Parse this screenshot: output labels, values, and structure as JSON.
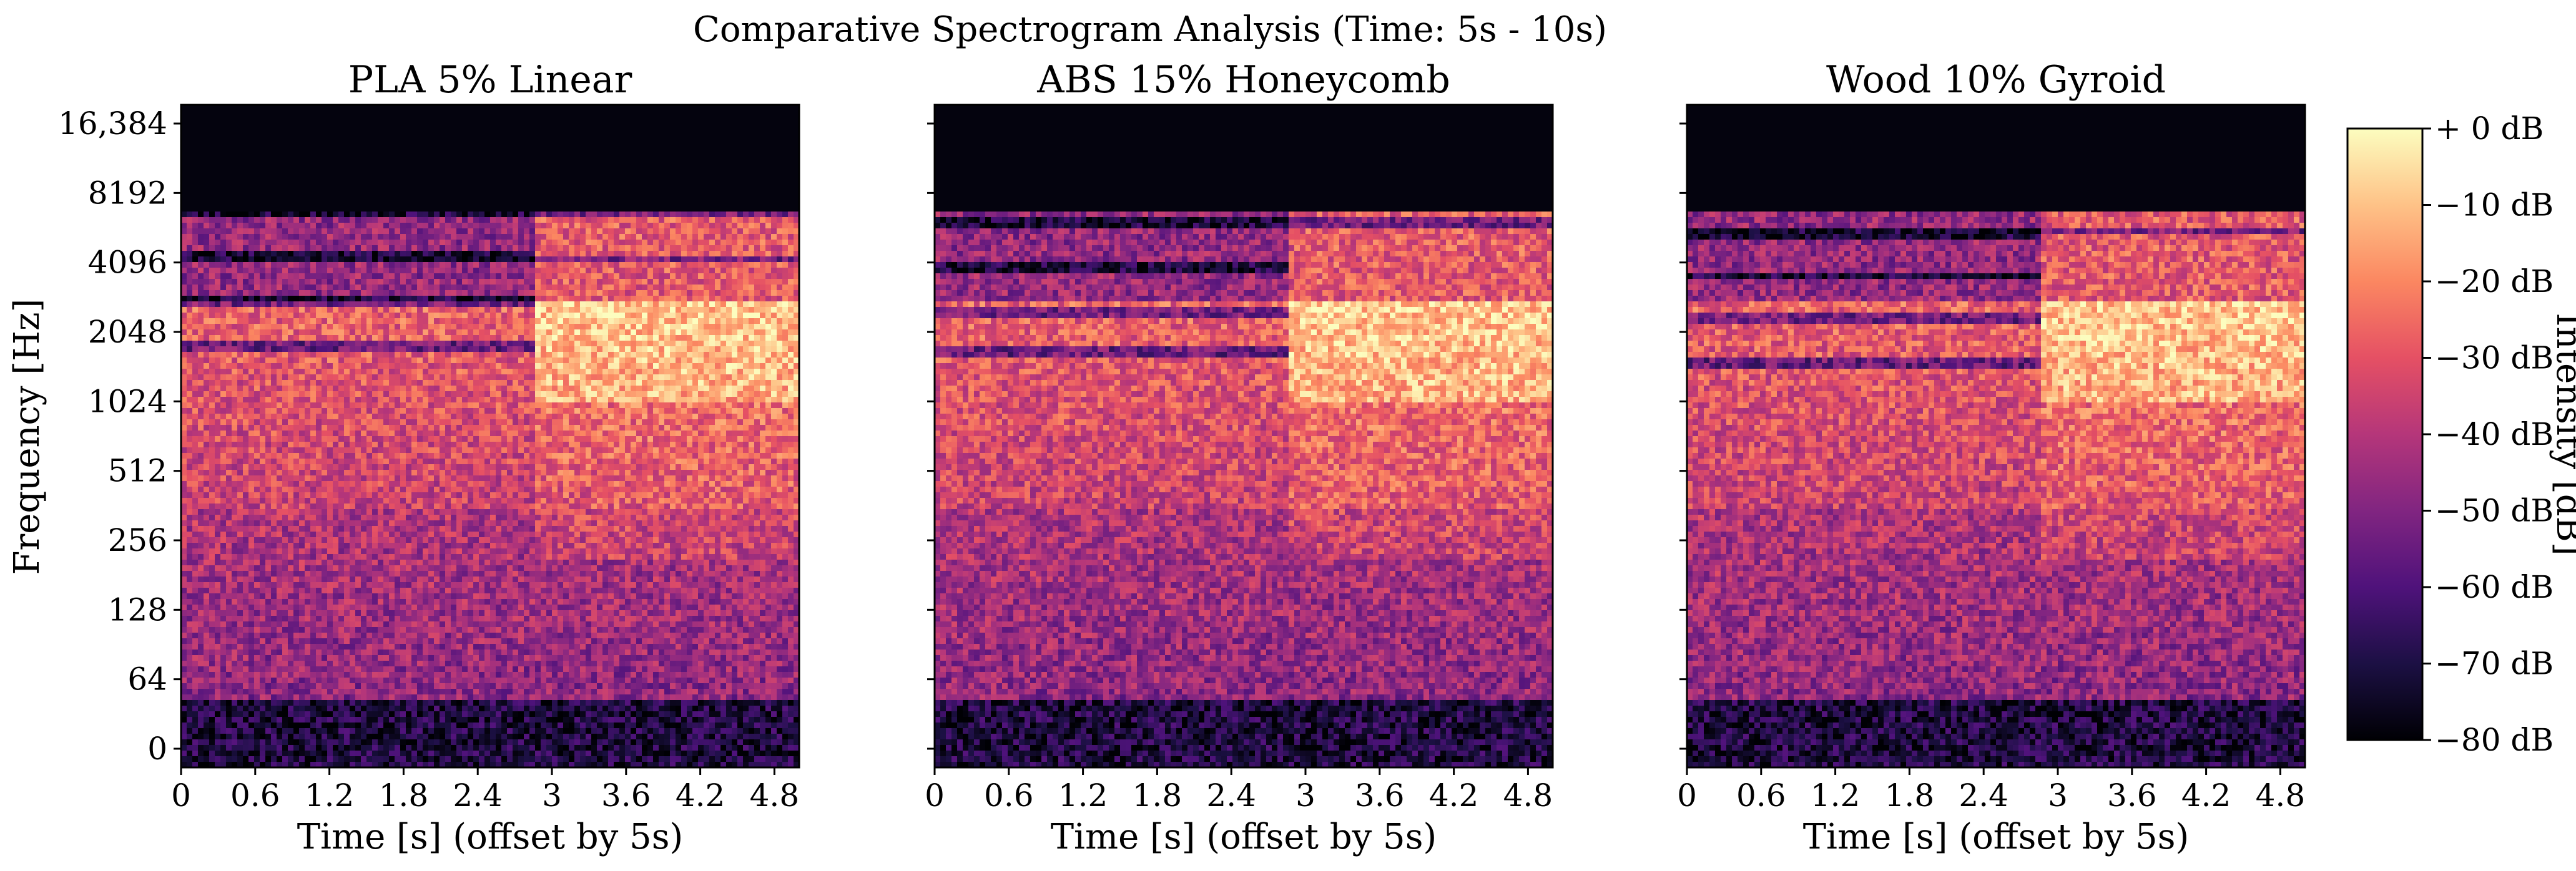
{
  "chart_data": {
    "type": "heatmap",
    "suptitle": "Comparative Spectrogram Analysis (Time: 5s - 10s)",
    "xlabel": "Time [s] (offset by 5s)",
    "ylabel": "Frequency [Hz]",
    "xlim": [
      0,
      5
    ],
    "x_ticks": [
      "0",
      "0.6",
      "1.2",
      "1.8",
      "2.4",
      "3",
      "3.6",
      "4.2",
      "4.8"
    ],
    "y_scale": "symlog",
    "y_ticks": [
      "0",
      "64",
      "128",
      "256",
      "512",
      "1024",
      "2048",
      "4096",
      "8192",
      "16,384"
    ],
    "y_tick_values": [
      0,
      64,
      128,
      256,
      512,
      1024,
      2048,
      4096,
      8192,
      16384
    ],
    "colormap": "magma",
    "colorbar": {
      "label": "Intensity [dB]",
      "range": [
        -80,
        0
      ],
      "ticks": [
        "+ 0 dB",
        "−10 dB",
        "−20 dB",
        "−30 dB",
        "−40 dB",
        "−50 dB",
        "−60 dB",
        "−70 dB",
        "−80 dB"
      ],
      "tick_values": [
        0,
        -10,
        -20,
        -30,
        -40,
        -50,
        -60,
        -70,
        -80
      ]
    },
    "panels": [
      {
        "title": "PLA 5% Linear",
        "onset_s": 2.85,
        "cutoff_hz": 7000
      },
      {
        "title": "ABS 15% Honeycomb",
        "onset_s": 2.85,
        "cutoff_hz": 7000
      },
      {
        "title": "Wood 10% Gyroid",
        "onset_s": 2.85,
        "cutoff_hz": 7000
      }
    ]
  }
}
